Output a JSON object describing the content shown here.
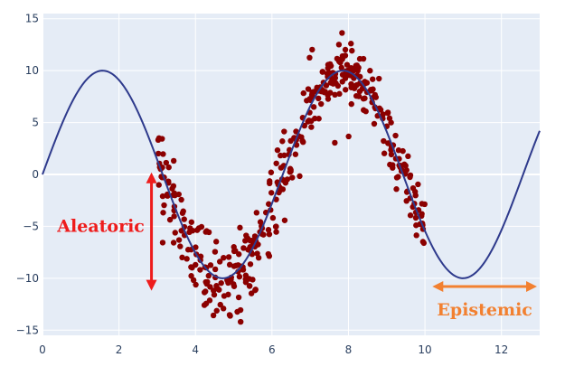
{
  "chart_data": {
    "type": "scatter",
    "title": "",
    "xlabel": "",
    "ylabel": "",
    "xlim": [
      0,
      13
    ],
    "ylim": [
      -15.5,
      15.5
    ],
    "x_ticks": [
      0,
      2,
      4,
      6,
      8,
      10,
      12
    ],
    "y_ticks": [
      -15,
      -10,
      -5,
      0,
      5,
      10,
      15
    ],
    "y_tick_labels": [
      "−15",
      "−10",
      "−5",
      "0",
      "5",
      "10",
      "15"
    ],
    "grid": true,
    "legend": "none",
    "colors": {
      "plot_background": "#e5ecf6",
      "grid": "#ffffff",
      "curve": "#2e3a8c",
      "points": "#8b0000",
      "aleatoric": "#ee1c1c",
      "epistemic": "#f28030"
    },
    "series": [
      {
        "type": "line",
        "function": "10*sin(x)",
        "x_range": [
          0,
          13
        ]
      },
      {
        "type": "scatter",
        "description_of_cloud": "noisy samples of 10*sin(x) for x in [3, 10]",
        "x_range": [
          3,
          10
        ],
        "noise_scale_at_left": 3.0,
        "noise_scale_at_right": 1.5,
        "count": 420
      }
    ],
    "annotations": [
      {
        "text": "Aleatoric",
        "arrow": "vertical",
        "x": 2.85,
        "y_from": 0.2,
        "y_to": -11.2
      },
      {
        "text": "Epistemic",
        "arrow": "horizontal",
        "x_from": 10.1,
        "x_to": 13,
        "y": -10.8
      }
    ]
  }
}
